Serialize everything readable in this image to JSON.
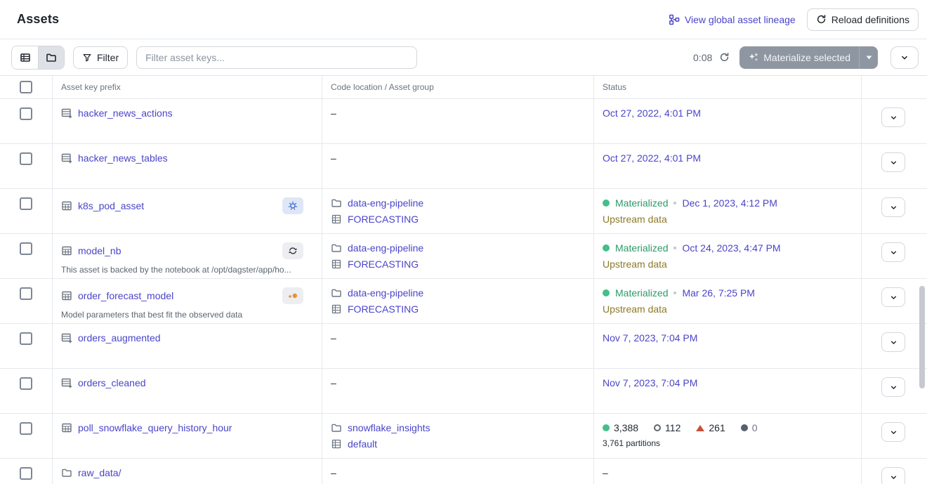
{
  "header": {
    "title": "Assets",
    "lineage_link_label": "View global asset lineage",
    "reload_button_label": "Reload definitions"
  },
  "toolbar": {
    "filter_button_label": "Filter",
    "search_placeholder": "Filter asset keys...",
    "timer": "0:08",
    "materialize_button_label": "Materialize selected"
  },
  "colors": {
    "link": "#4A44C9",
    "materialized_green": "#2C9A67",
    "upstream_olive": "#8C7A2B",
    "failed_red": "#C8503C",
    "kubernetes_blue": "#3A6CD4",
    "jupyter_orange": "#E8923C"
  },
  "table": {
    "columns": {
      "asset_key": "Asset key prefix",
      "location": "Code location / Asset group",
      "status": "Status"
    },
    "dash": "–",
    "rows": [
      {
        "icon": "table-plus-icon",
        "name": "hacker_news_actions",
        "status": {
          "kind": "date",
          "date": "Oct 27, 2022, 4:01 PM"
        }
      },
      {
        "icon": "table-plus-icon",
        "name": "hacker_news_tables",
        "status": {
          "kind": "date",
          "date": "Oct 27, 2022, 4:01 PM"
        }
      },
      {
        "icon": "table-icon",
        "name": "k8s_pod_asset",
        "badge": "kubernetes-icon",
        "location": {
          "code_location": "data-eng-pipeline",
          "asset_group": "FORECASTING"
        },
        "status": {
          "kind": "materialized",
          "label": "Materialized",
          "date": "Dec 1, 2023, 4:12 PM",
          "note": "Upstream data"
        }
      },
      {
        "icon": "table-icon",
        "name": "model_nb",
        "badge": "sync-icon",
        "description": "This asset is backed by the notebook at /opt/dagster/app/ho...",
        "location": {
          "code_location": "data-eng-pipeline",
          "asset_group": "FORECASTING"
        },
        "status": {
          "kind": "materialized",
          "label": "Materialized",
          "date": "Oct 24, 2023, 4:47 PM",
          "note": "Upstream data"
        }
      },
      {
        "icon": "table-icon",
        "name": "order_forecast_model",
        "badge": "jupyter-icon",
        "description": "Model parameters that best fit the observed data",
        "location": {
          "code_location": "data-eng-pipeline",
          "asset_group": "FORECASTING"
        },
        "status": {
          "kind": "materialized",
          "label": "Materialized",
          "date": "Mar 26, 7:25 PM",
          "note": "Upstream data"
        }
      },
      {
        "icon": "table-plus-icon",
        "name": "orders_augmented",
        "status": {
          "kind": "date",
          "date": "Nov 7, 2023, 7:04 PM"
        }
      },
      {
        "icon": "table-plus-icon",
        "name": "orders_cleaned",
        "status": {
          "kind": "date",
          "date": "Nov 7, 2023, 7:04 PM"
        }
      },
      {
        "icon": "table-icon",
        "name": "poll_snowflake_query_history_hour",
        "location": {
          "code_location": "snowflake_insights",
          "asset_group": "default"
        },
        "status": {
          "kind": "counts",
          "counts": [
            {
              "icon": "dot-green-icon",
              "label": "materialized-count",
              "value": "3,388"
            },
            {
              "icon": "circle-outline-icon",
              "label": "missing-count",
              "value": "112"
            },
            {
              "icon": "triangle-up-icon",
              "label": "failed-count",
              "value": "261"
            },
            {
              "icon": "dot-gray-icon",
              "label": "other-count",
              "value": "0",
              "muted": true
            }
          ],
          "partitions": "3,761 partitions"
        }
      },
      {
        "icon": "folder-icon",
        "name": "raw_data/",
        "status": {
          "kind": "dash"
        }
      }
    ]
  }
}
